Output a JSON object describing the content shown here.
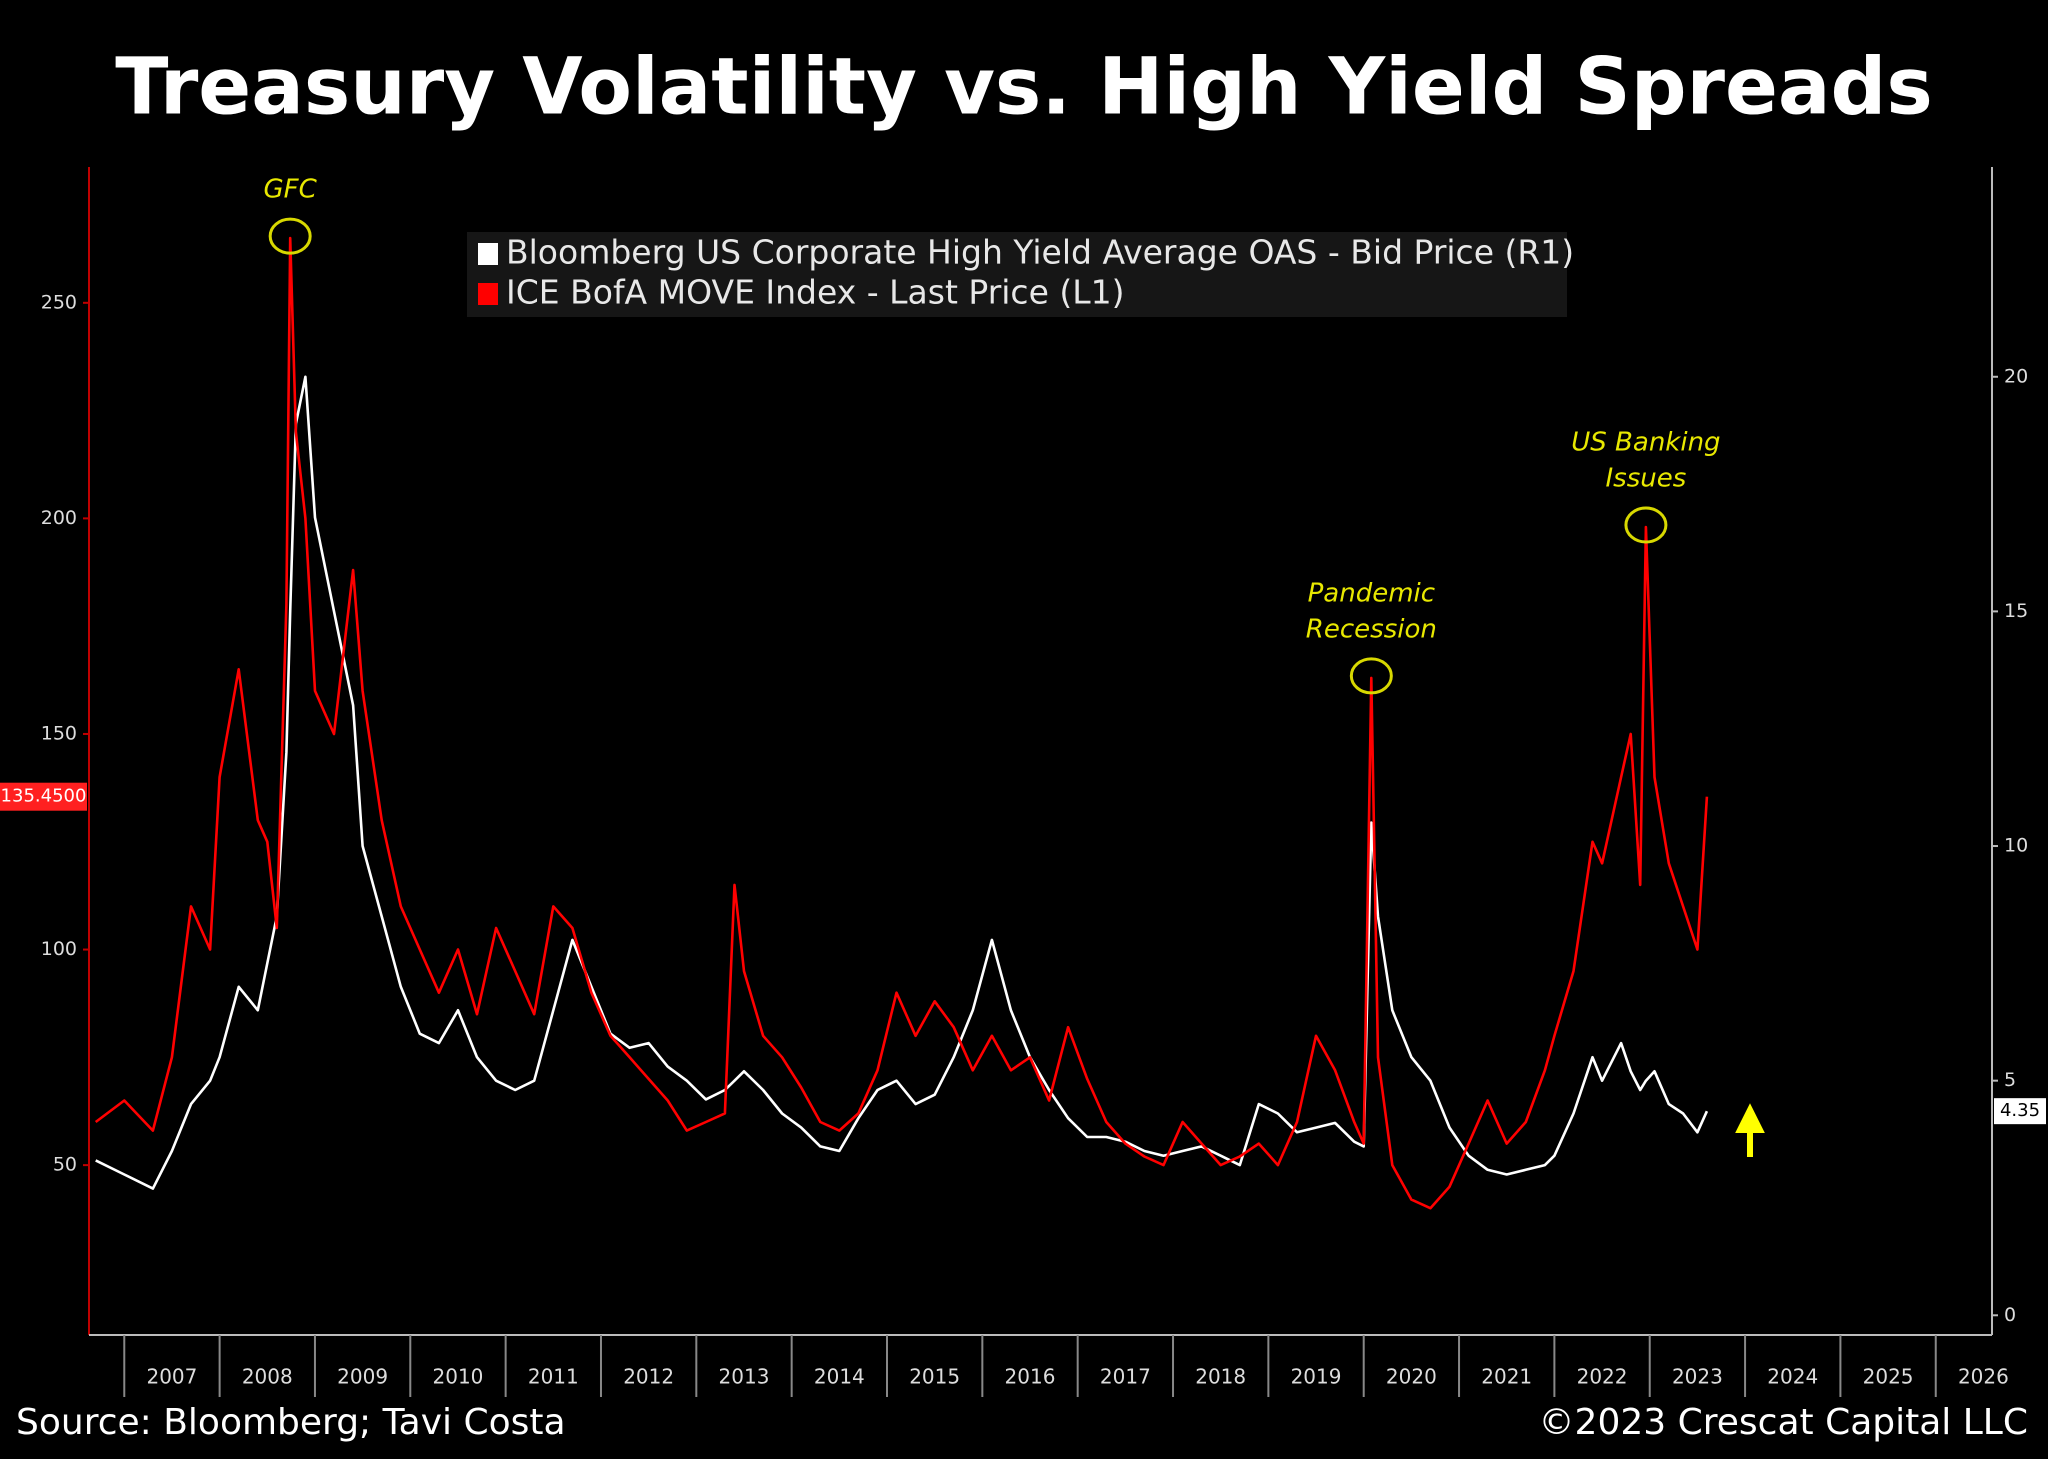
{
  "chart_data": {
    "type": "line",
    "title": "Treasury Volatility vs. High Yield Spreads",
    "source": "Source: Bloomberg; Tavi Costa",
    "copyright": "©2023 Crescat Capital LLC",
    "x": [
      2006.7,
      2007.0,
      2007.3,
      2007.5,
      2007.7,
      2007.9,
      2008.0,
      2008.2,
      2008.4,
      2008.5,
      2008.6,
      2008.7,
      2008.74,
      2008.8,
      2008.9,
      2009.0,
      2009.2,
      2009.4,
      2009.5,
      2009.7,
      2009.9,
      2010.1,
      2010.3,
      2010.5,
      2010.7,
      2010.9,
      2011.1,
      2011.3,
      2011.5,
      2011.7,
      2011.9,
      2012.1,
      2012.3,
      2012.5,
      2012.7,
      2012.9,
      2013.1,
      2013.3,
      2013.4,
      2013.5,
      2013.7,
      2013.9,
      2014.1,
      2014.3,
      2014.5,
      2014.7,
      2014.9,
      2015.1,
      2015.3,
      2015.5,
      2015.7,
      2015.9,
      2016.1,
      2016.3,
      2016.5,
      2016.7,
      2016.9,
      2017.1,
      2017.3,
      2017.5,
      2017.7,
      2017.9,
      2018.1,
      2018.3,
      2018.5,
      2018.7,
      2018.9,
      2019.1,
      2019.3,
      2019.5,
      2019.7,
      2019.9,
      2020.0,
      2020.08,
      2020.15,
      2020.3,
      2020.5,
      2020.7,
      2020.9,
      2021.1,
      2021.3,
      2021.5,
      2021.7,
      2021.9,
      2022.0,
      2022.2,
      2022.4,
      2022.5,
      2022.7,
      2022.8,
      2022.9,
      2022.96,
      2023.05,
      2023.2,
      2023.35,
      2023.5,
      2023.6
    ],
    "series": [
      {
        "name": "Bloomberg US Corporate High Yield Average OAS - Bid Price (R1)",
        "color": "#ffffff",
        "axis": "y2",
        "last_label": "4.35",
        "values": [
          3.3,
          3.0,
          2.7,
          3.5,
          4.5,
          5.0,
          5.5,
          7.0,
          6.5,
          7.5,
          8.5,
          12,
          15,
          19,
          20,
          17,
          15,
          13,
          10,
          8.5,
          7,
          6,
          5.8,
          6.5,
          5.5,
          5.0,
          4.8,
          5.0,
          6.5,
          8,
          7,
          6.0,
          5.7,
          5.8,
          5.3,
          5.0,
          4.6,
          4.8,
          5.0,
          5.2,
          4.8,
          4.3,
          4.0,
          3.6,
          3.5,
          4.2,
          4.8,
          5.0,
          4.5,
          4.7,
          5.5,
          6.5,
          8.0,
          6.5,
          5.5,
          4.8,
          4.2,
          3.8,
          3.8,
          3.7,
          3.5,
          3.4,
          3.5,
          3.6,
          3.4,
          3.2,
          4.5,
          4.3,
          3.9,
          4.0,
          4.1,
          3.7,
          3.6,
          10.5,
          8.5,
          6.5,
          5.5,
          5.0,
          4.0,
          3.4,
          3.1,
          3.0,
          3.1,
          3.2,
          3.4,
          4.3,
          5.5,
          5.0,
          5.8,
          5.2,
          4.8,
          5.0,
          5.2,
          4.5,
          4.3,
          3.9,
          4.35
        ]
      },
      {
        "name": "ICE BofA MOVE Index - Last Price (L1)",
        "color": "#ff0000",
        "axis": "y",
        "last_label": "135.4500",
        "values": [
          60,
          65,
          58,
          75,
          110,
          100,
          140,
          165,
          130,
          125,
          105,
          180,
          265,
          220,
          200,
          160,
          150,
          188,
          160,
          130,
          110,
          100,
          90,
          100,
          85,
          105,
          95,
          85,
          110,
          105,
          90,
          80,
          75,
          70,
          65,
          58,
          60,
          62,
          115,
          95,
          80,
          75,
          68,
          60,
          58,
          62,
          72,
          90,
          80,
          88,
          82,
          72,
          80,
          72,
          75,
          65,
          82,
          70,
          60,
          55,
          52,
          50,
          60,
          55,
          50,
          52,
          55,
          50,
          60,
          80,
          72,
          60,
          55,
          163,
          75,
          50,
          42,
          40,
          45,
          55,
          65,
          55,
          60,
          72,
          80,
          95,
          125,
          120,
          140,
          150,
          115,
          198,
          140,
          120,
          110,
          100,
          135.45
        ]
      }
    ],
    "annotations": [
      {
        "lines": [
          "GFC"
        ],
        "x": 2008.74,
        "y": 265
      },
      {
        "lines": [
          "Pandemic",
          "Recession"
        ],
        "x": 2020.08,
        "y": 163
      },
      {
        "lines": [
          "US Banking",
          "Issues"
        ],
        "x": 2022.96,
        "y": 198
      }
    ],
    "xlim": [
      2006.63,
      2026.59
    ],
    "xticks": [
      {
        "value": 2007.5,
        "label": "2007"
      },
      {
        "value": 2008.5,
        "label": "2008"
      },
      {
        "value": 2009.5,
        "label": "2009"
      },
      {
        "value": 2010.5,
        "label": "2010"
      },
      {
        "value": 2011.5,
        "label": "2011"
      },
      {
        "value": 2012.5,
        "label": "2012"
      },
      {
        "value": 2013.5,
        "label": "2013"
      },
      {
        "value": 2014.5,
        "label": "2014"
      },
      {
        "value": 2015.5,
        "label": "2015"
      },
      {
        "value": 2016.5,
        "label": "2016"
      },
      {
        "value": 2017.5,
        "label": "2017"
      },
      {
        "value": 2018.5,
        "label": "2018"
      },
      {
        "value": 2019.5,
        "label": "2019"
      },
      {
        "value": 2020.5,
        "label": "2020"
      },
      {
        "value": 2021.5,
        "label": "2021"
      },
      {
        "value": 2022.5,
        "label": "2022"
      },
      {
        "value": 2023.5,
        "label": "2023"
      },
      {
        "value": 2024.5,
        "label": "2024"
      },
      {
        "value": 2025.5,
        "label": "2025"
      },
      {
        "value": 2026.5,
        "label": "2026"
      }
    ],
    "ylim": [
      10.6,
      281.5
    ],
    "yticks": [
      50,
      100,
      150,
      200,
      250
    ],
    "y2lim": [
      -0.42,
      24.47
    ],
    "y2ticks": [
      0,
      5,
      10,
      15,
      20
    ],
    "grid": false
  }
}
